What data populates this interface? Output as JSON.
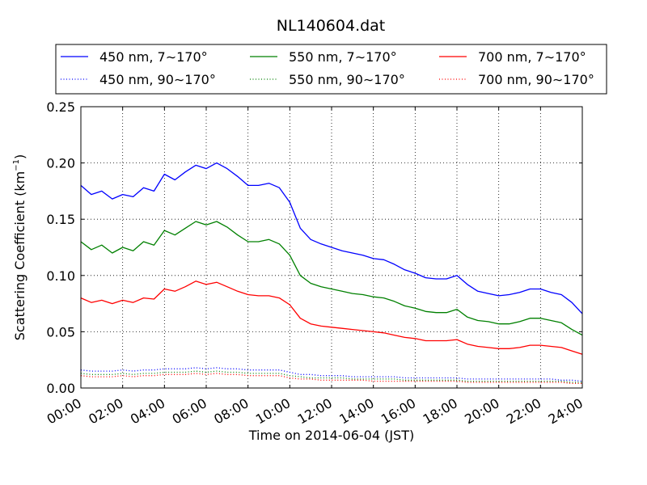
{
  "chart_data": {
    "type": "line",
    "title": "NL140604.dat",
    "xlabel": "Time on 2014-06-04 (JST)",
    "ylabel": "Scattering Coefficient (km",
    "ylabel_sup": "−1",
    "ylabel_suffix": ")",
    "x_unit": "hours since 00:00 JST",
    "xlim": [
      0,
      24
    ],
    "ylim": [
      0,
      0.25
    ],
    "x_ticks": [
      {
        "value": 0,
        "label": "00:00"
      },
      {
        "value": 2,
        "label": "02:00"
      },
      {
        "value": 4,
        "label": "04:00"
      },
      {
        "value": 6,
        "label": "06:00"
      },
      {
        "value": 8,
        "label": "08:00"
      },
      {
        "value": 10,
        "label": "10:00"
      },
      {
        "value": 12,
        "label": "12:00"
      },
      {
        "value": 14,
        "label": "14:00"
      },
      {
        "value": 16,
        "label": "16:00"
      },
      {
        "value": 18,
        "label": "18:00"
      },
      {
        "value": 20,
        "label": "20:00"
      },
      {
        "value": 22,
        "label": "22:00"
      },
      {
        "value": 24,
        "label": "24:00"
      }
    ],
    "y_ticks": [
      {
        "value": 0,
        "label": "0.00"
      },
      {
        "value": 0.05,
        "label": "0.05"
      },
      {
        "value": 0.1,
        "label": "0.10"
      },
      {
        "value": 0.15,
        "label": "0.15"
      },
      {
        "value": 0.2,
        "label": "0.20"
      },
      {
        "value": 0.25,
        "label": "0.25"
      }
    ],
    "grid": true,
    "legend": {
      "placement": "top",
      "columns": 3
    },
    "x": [
      0,
      0.5,
      1,
      1.5,
      2,
      2.5,
      3,
      3.5,
      4,
      4.5,
      5,
      5.5,
      6,
      6.5,
      7,
      7.5,
      8,
      8.5,
      9,
      9.5,
      10,
      10.5,
      11,
      11.5,
      12,
      12.5,
      13,
      13.5,
      14,
      14.5,
      15,
      15.5,
      16,
      16.5,
      17,
      17.5,
      18,
      18.5,
      19,
      19.5,
      20,
      20.5,
      21,
      21.5,
      22,
      22.5,
      23,
      23.5,
      24
    ],
    "series": [
      {
        "name": "450 nm, 7∼170°",
        "color": "#0000ff",
        "style": "solid",
        "values": [
          0.18,
          0.172,
          0.175,
          0.168,
          0.172,
          0.17,
          0.178,
          0.175,
          0.19,
          0.185,
          0.192,
          0.198,
          0.195,
          0.2,
          0.195,
          0.188,
          0.18,
          0.18,
          0.182,
          0.178,
          0.165,
          0.142,
          0.132,
          0.128,
          0.125,
          0.122,
          0.12,
          0.118,
          0.115,
          0.114,
          0.11,
          0.105,
          0.102,
          0.098,
          0.097,
          0.097,
          0.1,
          0.092,
          0.086,
          0.084,
          0.082,
          0.083,
          0.085,
          0.088,
          0.088,
          0.085,
          0.083,
          0.076,
          0.066
        ]
      },
      {
        "name": "550 nm, 7∼170°",
        "color": "#008000",
        "style": "solid",
        "values": [
          0.13,
          0.123,
          0.127,
          0.12,
          0.125,
          0.122,
          0.13,
          0.127,
          0.14,
          0.136,
          0.142,
          0.148,
          0.145,
          0.148,
          0.143,
          0.136,
          0.13,
          0.13,
          0.132,
          0.128,
          0.118,
          0.1,
          0.093,
          0.09,
          0.088,
          0.086,
          0.084,
          0.083,
          0.081,
          0.08,
          0.077,
          0.073,
          0.071,
          0.068,
          0.067,
          0.067,
          0.07,
          0.063,
          0.06,
          0.059,
          0.057,
          0.057,
          0.059,
          0.062,
          0.062,
          0.06,
          0.058,
          0.052,
          0.047
        ]
      },
      {
        "name": "700 nm, 7∼170°",
        "color": "#ff0000",
        "style": "solid",
        "values": [
          0.08,
          0.076,
          0.078,
          0.075,
          0.078,
          0.076,
          0.08,
          0.079,
          0.088,
          0.086,
          0.09,
          0.095,
          0.092,
          0.094,
          0.09,
          0.086,
          0.083,
          0.082,
          0.082,
          0.08,
          0.074,
          0.062,
          0.057,
          0.055,
          0.054,
          0.053,
          0.052,
          0.051,
          0.05,
          0.049,
          0.047,
          0.045,
          0.044,
          0.042,
          0.042,
          0.042,
          0.043,
          0.039,
          0.037,
          0.036,
          0.035,
          0.035,
          0.036,
          0.038,
          0.038,
          0.037,
          0.036,
          0.033,
          0.03
        ]
      },
      {
        "name": "450 nm, 90∼170°",
        "color": "#0000ff",
        "style": "dotted",
        "values": [
          0.016,
          0.015,
          0.015,
          0.015,
          0.016,
          0.015,
          0.016,
          0.016,
          0.017,
          0.017,
          0.017,
          0.018,
          0.017,
          0.018,
          0.017,
          0.017,
          0.016,
          0.016,
          0.016,
          0.016,
          0.014,
          0.012,
          0.012,
          0.011,
          0.011,
          0.011,
          0.01,
          0.01,
          0.01,
          0.01,
          0.01,
          0.009,
          0.009,
          0.009,
          0.009,
          0.009,
          0.009,
          0.008,
          0.008,
          0.008,
          0.008,
          0.008,
          0.008,
          0.008,
          0.008,
          0.008,
          0.007,
          0.007,
          0.006
        ]
      },
      {
        "name": "550 nm, 90∼170°",
        "color": "#008000",
        "style": "dotted",
        "values": [
          0.013,
          0.012,
          0.012,
          0.012,
          0.013,
          0.012,
          0.013,
          0.013,
          0.014,
          0.014,
          0.014,
          0.015,
          0.014,
          0.015,
          0.014,
          0.014,
          0.013,
          0.013,
          0.013,
          0.013,
          0.011,
          0.01,
          0.009,
          0.009,
          0.009,
          0.009,
          0.008,
          0.008,
          0.008,
          0.008,
          0.008,
          0.007,
          0.007,
          0.007,
          0.007,
          0.007,
          0.007,
          0.006,
          0.006,
          0.006,
          0.006,
          0.006,
          0.006,
          0.006,
          0.006,
          0.006,
          0.006,
          0.005,
          0.005
        ]
      },
      {
        "name": "700 nm, 90∼170°",
        "color": "#ff0000",
        "style": "dotted",
        "values": [
          0.011,
          0.01,
          0.01,
          0.01,
          0.011,
          0.01,
          0.011,
          0.011,
          0.012,
          0.012,
          0.012,
          0.013,
          0.012,
          0.013,
          0.012,
          0.012,
          0.011,
          0.011,
          0.011,
          0.011,
          0.009,
          0.008,
          0.008,
          0.007,
          0.007,
          0.007,
          0.007,
          0.007,
          0.006,
          0.006,
          0.006,
          0.006,
          0.006,
          0.006,
          0.006,
          0.006,
          0.006,
          0.005,
          0.005,
          0.005,
          0.005,
          0.005,
          0.005,
          0.005,
          0.005,
          0.005,
          0.005,
          0.004,
          0.004
        ]
      }
    ]
  }
}
